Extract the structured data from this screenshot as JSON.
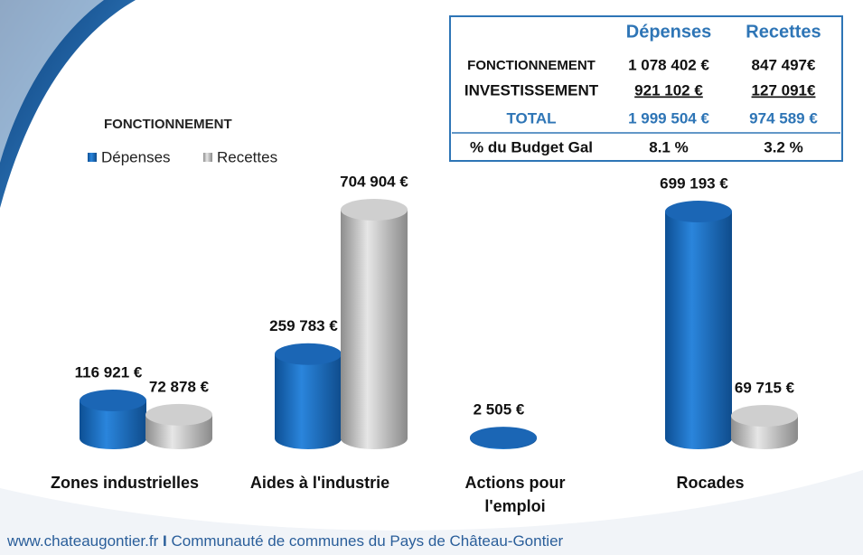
{
  "chart_data": {
    "type": "bar",
    "title": "FONCTIONNEMENT",
    "categories": [
      [
        "Zones industrielles"
      ],
      [
        "Aides à l'industrie"
      ],
      [
        "Actions pour",
        "l'emploi"
      ],
      [
        "Rocades"
      ]
    ],
    "series": [
      {
        "name": "Dépenses",
        "color": "#1f6fc1",
        "values": [
          116921,
          259783,
          2505,
          699193
        ],
        "value_labels": [
          "116 921 €",
          "259 783 €",
          "2 505 €",
          "699 193 €"
        ]
      },
      {
        "name": "Recettes",
        "color": "#b8b8b8",
        "values": [
          72878,
          704904,
          null,
          69715
        ],
        "value_labels": [
          "72 878 €",
          "704 904 €",
          null,
          "69 715 €"
        ]
      }
    ]
  },
  "table": {
    "columns": [
      "Dépenses",
      "Recettes"
    ],
    "rows": [
      [
        "FONCTIONNEMENT",
        "1 078 402 €",
        "847 497€"
      ],
      [
        "INVESTISSEMENT",
        "921 102 €",
        "127 091€"
      ],
      [
        "TOTAL",
        "1 999 504 €",
        "974 589 €"
      ],
      [
        "% du Budget Gal",
        "8.1 %",
        "3.2 %"
      ]
    ]
  },
  "footer": {
    "site": "www.chateaugontier.fr",
    "separator": "I",
    "text": "Communauté de communes du Pays de Château-Gontier"
  }
}
